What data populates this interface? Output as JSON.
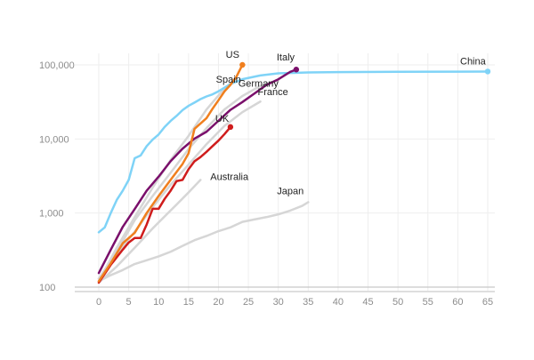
{
  "chart_data": {
    "type": "line",
    "title": "",
    "xlabel": "",
    "ylabel": "",
    "x_scale": "linear",
    "y_scale": "log",
    "xlim": [
      -4,
      66
    ],
    "ylim": [
      100,
      120000
    ],
    "x_ticks": [
      0,
      5,
      10,
      15,
      20,
      25,
      30,
      35,
      40,
      45,
      50,
      55,
      60,
      65
    ],
    "x_tick_labels": [
      "0",
      "5",
      "10",
      "15",
      "20",
      "25",
      "30",
      "35",
      "40",
      "45",
      "50",
      "55",
      "60",
      "65"
    ],
    "y_ticks": [
      100,
      1000,
      10000,
      100000
    ],
    "y_tick_labels": [
      "100",
      "1,000",
      "10,000",
      "100,000"
    ],
    "grid": true,
    "legend": "none",
    "series": [
      {
        "name": "Japan",
        "color": "#d6d6d6",
        "highlight": false,
        "end_marker": false,
        "x": [
          0,
          2,
          4,
          6,
          8,
          10,
          12,
          14,
          16,
          18,
          20,
          22,
          24,
          26,
          28,
          30,
          32,
          34,
          35
        ],
        "y": [
          120,
          145,
          170,
          205,
          230,
          260,
          300,
          360,
          430,
          490,
          570,
          640,
          760,
          820,
          880,
          960,
          1080,
          1250,
          1400
        ]
      },
      {
        "name": "Australia",
        "color": "#d6d6d6",
        "highlight": false,
        "end_marker": false,
        "x": [
          0,
          3,
          6,
          9,
          11,
          13,
          15,
          17
        ],
        "y": [
          115,
          190,
          340,
          620,
          900,
          1300,
          1900,
          2800
        ]
      },
      {
        "name": "France",
        "color": "#d6d6d6",
        "highlight": false,
        "end_marker": false,
        "x": [
          0,
          3,
          6,
          9,
          12,
          15,
          18,
          21,
          24,
          27
        ],
        "y": [
          130,
          280,
          560,
          1200,
          2400,
          4500,
          8500,
          15000,
          23000,
          32000
        ]
      },
      {
        "name": "Germany",
        "color": "#d6d6d6",
        "highlight": false,
        "end_marker": false,
        "x": [
          0,
          3,
          6,
          9,
          12,
          15,
          18,
          21,
          24,
          27,
          30
        ],
        "y": [
          130,
          300,
          800,
          1700,
          3500,
          7300,
          14000,
          25000,
          38000,
          52000,
          62000
        ]
      },
      {
        "name": "Spain",
        "color": "#d6d6d6",
        "highlight": false,
        "end_marker": false,
        "x": [
          0,
          3,
          6,
          9,
          12,
          15,
          18,
          21,
          23
        ],
        "y": [
          120,
          340,
          880,
          2200,
          5200,
          11000,
          25000,
          48000,
          66000
        ]
      },
      {
        "name": "China",
        "color": "#7fd3f7",
        "highlight": true,
        "end_marker": true,
        "x": [
          0,
          1,
          2,
          3,
          4,
          5,
          6,
          7,
          8,
          9,
          10,
          11,
          12,
          13,
          14,
          15,
          16,
          17,
          18,
          19,
          20,
          22,
          24,
          27,
          30,
          35,
          40,
          50,
          60,
          65
        ],
        "y": [
          550,
          640,
          1000,
          1500,
          2000,
          2800,
          5500,
          6000,
          8000,
          9800,
          11500,
          14500,
          17500,
          20500,
          24500,
          28000,
          31000,
          34500,
          37500,
          40000,
          44000,
          55000,
          64000,
          72000,
          77000,
          79000,
          80000,
          80800,
          81000,
          81400
        ]
      },
      {
        "name": "Italy",
        "color": "#7a0f6b",
        "highlight": true,
        "end_marker": true,
        "x": [
          0,
          2,
          4,
          6,
          8,
          10,
          12,
          14,
          16,
          18,
          20,
          22,
          24,
          26,
          28,
          30,
          32,
          33
        ],
        "y": [
          155,
          320,
          650,
          1130,
          2000,
          3100,
          5000,
          7400,
          10100,
          12500,
          17600,
          24700,
          31500,
          41000,
          53500,
          63900,
          80500,
          86500
        ]
      },
      {
        "name": "UK",
        "color": "#cf1c1c",
        "highlight": true,
        "end_marker": true,
        "x": [
          0,
          2,
          4,
          5,
          6,
          7,
          8,
          9,
          10,
          11,
          12,
          13,
          14,
          15,
          16,
          17,
          18,
          19,
          20,
          21,
          22
        ],
        "y": [
          115,
          200,
          320,
          400,
          460,
          460,
          700,
          1140,
          1140,
          1550,
          2000,
          2700,
          2800,
          3900,
          5000,
          5700,
          6700,
          8000,
          9500,
          11600,
          14500
        ]
      },
      {
        "name": "US",
        "color": "#f07f1e",
        "highlight": true,
        "end_marker": true,
        "x": [
          0,
          2,
          4,
          6,
          8,
          10,
          12,
          14,
          15,
          16,
          18,
          19,
          20,
          21,
          22,
          23,
          24
        ],
        "y": [
          120,
          210,
          390,
          540,
          1000,
          1700,
          2800,
          4600,
          6400,
          13700,
          19100,
          25500,
          33300,
          43800,
          53700,
          69200,
          100000
        ]
      }
    ],
    "labels": [
      {
        "series": "US",
        "text": "US",
        "x": 23,
        "y": 100000
      },
      {
        "series": "Spain",
        "text": "Spain",
        "x": 23,
        "y": 66000
      },
      {
        "series": "Italy",
        "text": "Italy",
        "x": 33,
        "y": 86500
      },
      {
        "series": "Germany",
        "text": "Germany",
        "x": 30,
        "y": 62000
      },
      {
        "series": "France",
        "text": "France",
        "x": 27,
        "y": 32000
      },
      {
        "series": "China",
        "text": "China",
        "x": 65,
        "y": 81400
      },
      {
        "series": "UK",
        "text": "UK",
        "x": 22,
        "y": 14500
      },
      {
        "series": "Australia",
        "text": "Australia",
        "x": 17,
        "y": 2800
      },
      {
        "series": "Japan",
        "text": "Japan",
        "x": 35,
        "y": 1400
      }
    ]
  }
}
